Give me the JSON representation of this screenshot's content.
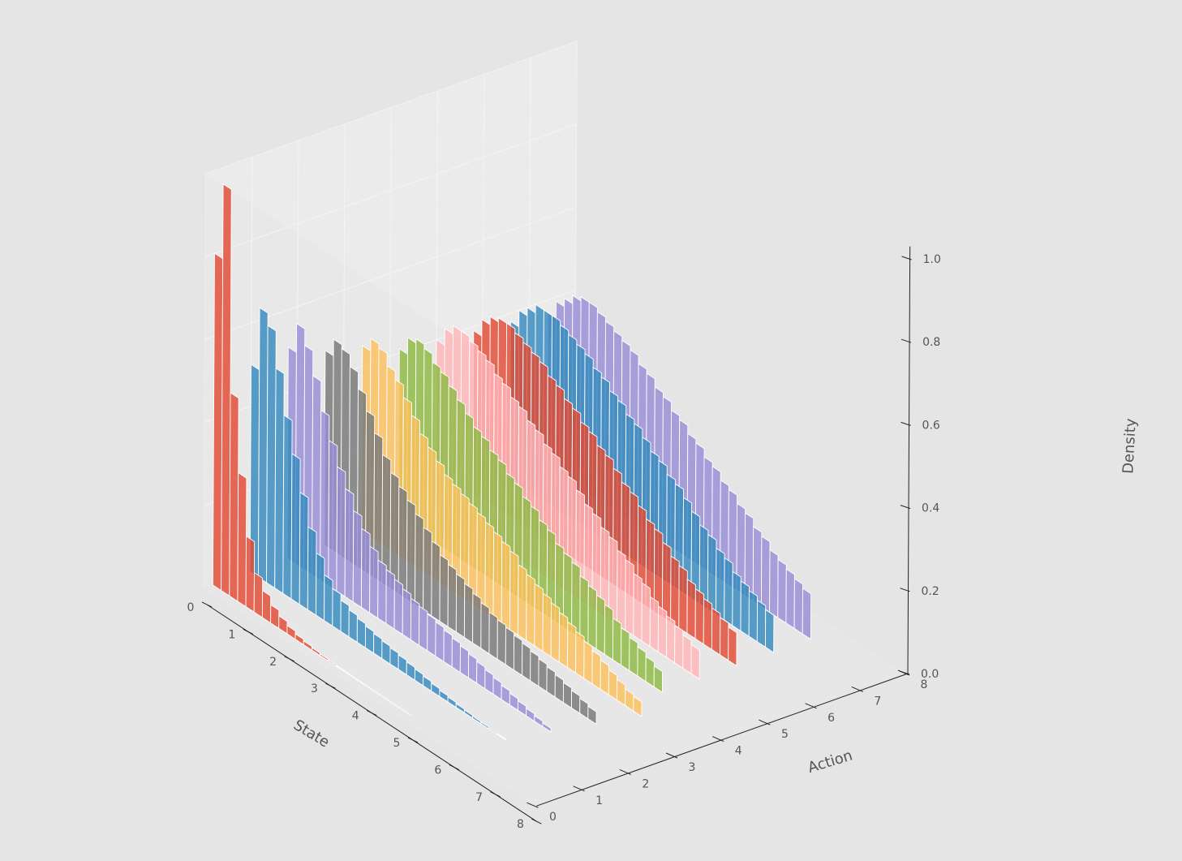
{
  "chart_data": {
    "type": "bar3d",
    "title": "",
    "xlabel": "State",
    "ylabel": "Action",
    "zlabel": "Density",
    "xlim": [
      0,
      8
    ],
    "ylim": [
      0,
      8
    ],
    "zlim": [
      0,
      1
    ],
    "x_ticks": [
      "0",
      "1",
      "2",
      "3",
      "4",
      "5",
      "6",
      "7",
      "8"
    ],
    "y_ticks": [
      "0",
      "1",
      "2",
      "3",
      "4",
      "5",
      "6",
      "7",
      "8"
    ],
    "z_ticks": [
      "0.0",
      "0.2",
      "0.4",
      "0.6",
      "0.8",
      "1.0"
    ],
    "grid": true,
    "state_bins": [
      0,
      0.2,
      0.4,
      0.6,
      0.8,
      1.0,
      1.2,
      1.4,
      1.6,
      1.8,
      2.0,
      2.2,
      2.4,
      2.6,
      2.8,
      3.0,
      3.2,
      3.4,
      3.6,
      3.8,
      4.0,
      4.2,
      4.4,
      4.6,
      4.8,
      5.0,
      5.2,
      5.4,
      5.6,
      5.8,
      6.0,
      6.2,
      6.4,
      6.6,
      6.8,
      7.0,
      7.2,
      7.4,
      7.6,
      7.8
    ],
    "series": [
      {
        "action": 0,
        "color": "#E24A33",
        "values": [
          0.8,
          0.98,
          0.49,
          0.31,
          0.17,
          0.095,
          0.065,
          0.044,
          0.03,
          0.02,
          0.013,
          0.009,
          0.006,
          0.004,
          0.003,
          0.002,
          0.0015,
          0.001,
          0.0007,
          0.0005,
          0.0003,
          0.0002,
          0.0001,
          0.0001
        ]
      },
      {
        "action": 1,
        "color": "#348ABD",
        "values": [
          0.5,
          0.65,
          0.62,
          0.53,
          0.43,
          0.35,
          0.27,
          0.2,
          0.15,
          0.11,
          0.09,
          0.075,
          0.065,
          0.058,
          0.052,
          0.047,
          0.043,
          0.039,
          0.035,
          0.031,
          0.027,
          0.023,
          0.019,
          0.015,
          0.012,
          0.009,
          0.007,
          0.005,
          0.004,
          0.003,
          0.002
        ]
      },
      {
        "action": 2,
        "color": "#988ED5",
        "values": [
          0.51,
          0.58,
          0.54,
          0.48,
          0.41,
          0.35,
          0.3,
          0.26,
          0.22,
          0.19,
          0.16,
          0.14,
          0.13,
          0.12,
          0.11,
          0.1,
          0.094,
          0.088,
          0.082,
          0.076,
          0.07,
          0.064,
          0.058,
          0.052,
          0.046,
          0.04,
          0.034,
          0.028,
          0.023,
          0.018,
          0.013,
          0.009
        ]
      },
      {
        "action": 3,
        "color": "#777777",
        "values": [
          0.47,
          0.51,
          0.5,
          0.47,
          0.43,
          0.39,
          0.35,
          0.31,
          0.28,
          0.26,
          0.24,
          0.22,
          0.2,
          0.18,
          0.16,
          0.15,
          0.14,
          0.13,
          0.12,
          0.11,
          0.1,
          0.095,
          0.09,
          0.084,
          0.078,
          0.072,
          0.066,
          0.06,
          0.054,
          0.048,
          0.042,
          0.036,
          0.03
        ]
      },
      {
        "action": 4,
        "color": "#FBC15E",
        "values": [
          0.45,
          0.48,
          0.47,
          0.44,
          0.42,
          0.39,
          0.36,
          0.33,
          0.31,
          0.29,
          0.27,
          0.26,
          0.25,
          0.24,
          0.23,
          0.22,
          0.21,
          0.2,
          0.19,
          0.17,
          0.16,
          0.15,
          0.14,
          0.13,
          0.12,
          0.11,
          0.1,
          0.09,
          0.08,
          0.07,
          0.06,
          0.05,
          0.04,
          0.035
        ]
      },
      {
        "action": 5,
        "color": "#8EBA42",
        "values": [
          0.41,
          0.45,
          0.46,
          0.45,
          0.43,
          0.42,
          0.4,
          0.38,
          0.36,
          0.34,
          0.33,
          0.31,
          0.3,
          0.28,
          0.27,
          0.25,
          0.24,
          0.22,
          0.21,
          0.19,
          0.18,
          0.17,
          0.15,
          0.14,
          0.13,
          0.12,
          0.1,
          0.09,
          0.08,
          0.07,
          0.06,
          0.05
        ]
      },
      {
        "action": 6,
        "color": "#FFB5B8",
        "values": [
          0.4,
          0.44,
          0.46,
          0.46,
          0.45,
          0.44,
          0.43,
          0.41,
          0.4,
          0.38,
          0.37,
          0.35,
          0.34,
          0.32,
          0.31,
          0.29,
          0.28,
          0.26,
          0.24,
          0.23,
          0.21,
          0.2,
          0.18,
          0.17,
          0.15,
          0.14,
          0.12,
          0.11,
          0.1,
          0.09,
          0.08,
          0.07
        ]
      },
      {
        "action": 7,
        "color": "#E24A33",
        "values": [
          0.39,
          0.43,
          0.45,
          0.46,
          0.46,
          0.45,
          0.44,
          0.43,
          0.42,
          0.4,
          0.39,
          0.37,
          0.36,
          0.34,
          0.33,
          0.31,
          0.3,
          0.28,
          0.26,
          0.25,
          0.23,
          0.21,
          0.2,
          0.18,
          0.16,
          0.15,
          0.13,
          0.12,
          0.11,
          0.1,
          0.09,
          0.08
        ]
      },
      {
        "action": 8,
        "color": "#348ABD",
        "values": [
          0.38,
          0.42,
          0.44,
          0.46,
          0.46,
          0.46,
          0.45,
          0.44,
          0.43,
          0.42,
          0.4,
          0.39,
          0.37,
          0.36,
          0.34,
          0.33,
          0.31,
          0.29,
          0.28,
          0.26,
          0.25,
          0.23,
          0.21,
          0.19,
          0.18,
          0.16,
          0.15,
          0.13,
          0.12,
          0.11,
          0.1,
          0.09
        ]
      },
      {
        "action": 9,
        "color": "#988ED5",
        "values": [
          0.37,
          0.41,
          0.43,
          0.45,
          0.46,
          0.46,
          0.45,
          0.44,
          0.43,
          0.42,
          0.41,
          0.39,
          0.38,
          0.36,
          0.35,
          0.33,
          0.32,
          0.3,
          0.29,
          0.27,
          0.26,
          0.24,
          0.23,
          0.21,
          0.2,
          0.18,
          0.17,
          0.15,
          0.14,
          0.13,
          0.12,
          0.11
        ]
      }
    ]
  }
}
